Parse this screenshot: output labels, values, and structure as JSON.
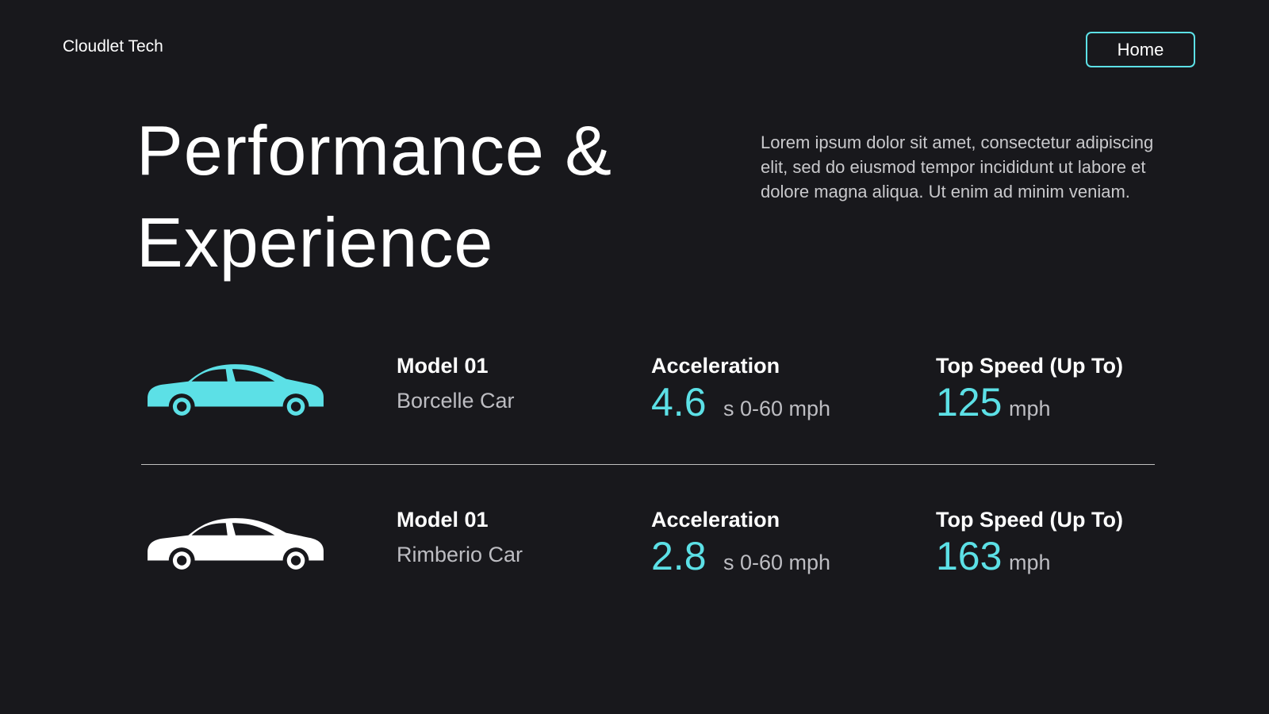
{
  "header": {
    "brand": "Cloudlet Tech",
    "nav_button": "Home"
  },
  "hero": {
    "title": "Performance & Experience",
    "description": "Lorem ipsum dolor sit amet, consectetur adipiscing elit, sed do eiusmod tempor incididunt ut labore et dolore magna aliqua. Ut enim ad minim veniam."
  },
  "models": [
    {
      "model": "Model 01",
      "name": "Borcelle Car",
      "acceleration_label": "Acceleration",
      "acceleration": "4.6",
      "acceleration_unit": "s 0-60 mph",
      "speed_label": "Top Speed (Up To)",
      "speed": "125",
      "speed_unit": "mph"
    },
    {
      "model": "Model 01",
      "name": "Rimberio Car",
      "acceleration_label": "Acceleration",
      "acceleration": "2.8",
      "acceleration_unit": "s 0-60 mph",
      "speed_label": "Top Speed (Up To)",
      "speed": "163",
      "speed_unit": "mph"
    }
  ]
}
